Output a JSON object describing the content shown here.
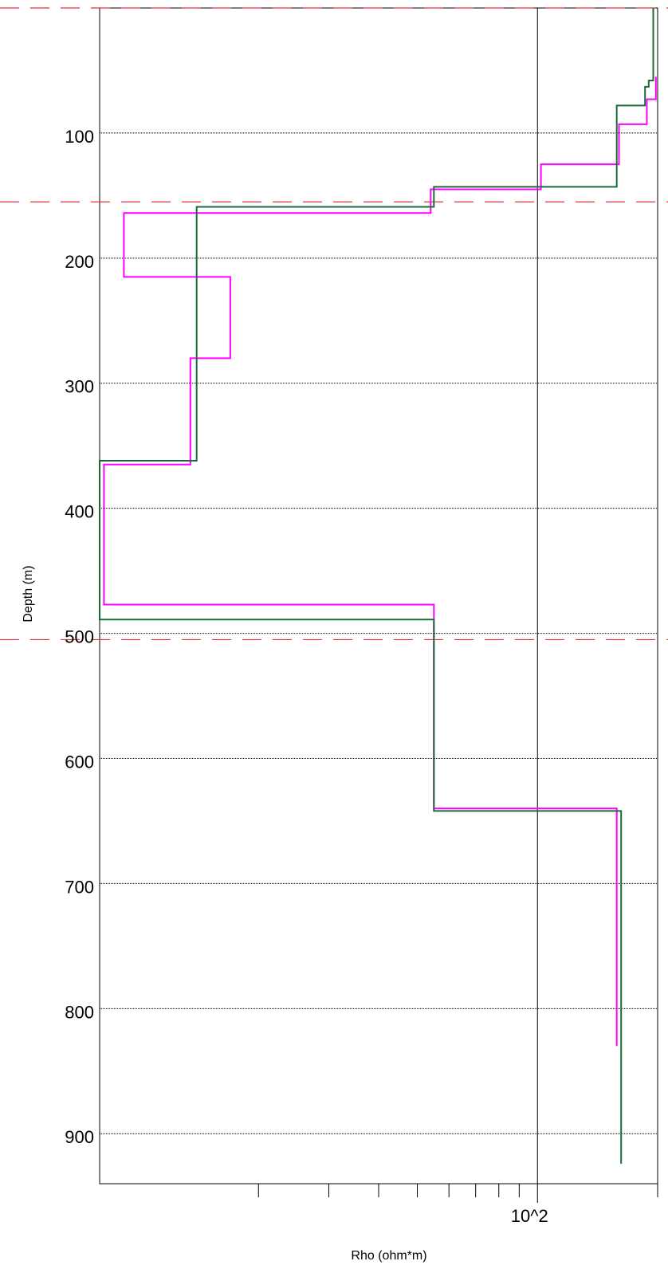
{
  "chart_data": {
    "type": "line",
    "orientation": "depth-profile-step",
    "xlabel": "Rho (ohm*m)",
    "ylabel": "Depth (m)",
    "xscale": "log",
    "xlim": [
      8,
      200
    ],
    "ylim": [
      0,
      940
    ],
    "y_inverted": true,
    "x_tick_labels": [
      {
        "value": 100,
        "label": "10^2"
      }
    ],
    "x_minor_ticks": [
      20,
      30,
      40,
      50,
      60,
      70,
      80,
      90,
      200
    ],
    "y_ticks": [
      100,
      200,
      300,
      400,
      500,
      600,
      700,
      800,
      900
    ],
    "grid": true,
    "legend": "none",
    "reference_lines": {
      "color": "#e0303a",
      "depths": [
        0,
        155,
        505
      ]
    },
    "series": [
      {
        "color": "#ff00ff",
        "points": [
          [
            198,
            55
          ],
          [
            198,
            73
          ],
          [
            188,
            73
          ],
          [
            188,
            93
          ],
          [
            160,
            93
          ],
          [
            160,
            125
          ],
          [
            102,
            125
          ],
          [
            102,
            145
          ],
          [
            54,
            145
          ],
          [
            54,
            164
          ],
          [
            9.2,
            164
          ],
          [
            9.2,
            215
          ],
          [
            17,
            215
          ],
          [
            17,
            280
          ],
          [
            13.5,
            280
          ],
          [
            13.5,
            365
          ],
          [
            8.2,
            365
          ],
          [
            8.2,
            477
          ],
          [
            55,
            477
          ],
          [
            55,
            640
          ],
          [
            158,
            640
          ],
          [
            158,
            830
          ]
        ]
      },
      {
        "color": "#1a6b3a",
        "points": [
          [
            195,
            0
          ],
          [
            195,
            58
          ],
          [
            190,
            58
          ],
          [
            190,
            63
          ],
          [
            186,
            63
          ],
          [
            186,
            78
          ],
          [
            158,
            78
          ],
          [
            158,
            143
          ],
          [
            55,
            143
          ],
          [
            55,
            159
          ],
          [
            14,
            159
          ],
          [
            14,
            362
          ],
          [
            8,
            362
          ],
          [
            8,
            489
          ],
          [
            55,
            489
          ],
          [
            55,
            642
          ],
          [
            162,
            642
          ],
          [
            162,
            924
          ]
        ]
      }
    ]
  }
}
